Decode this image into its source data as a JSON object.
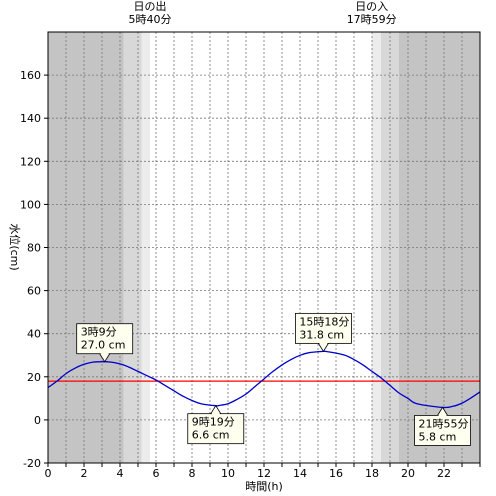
{
  "chart_data": {
    "type": "line",
    "xlabel": "時間(h)",
    "ylabel": "水位(cm)",
    "xlim": [
      0,
      24
    ],
    "ylim": [
      -20,
      180
    ],
    "x_ticks": [
      0,
      2,
      4,
      6,
      8,
      10,
      12,
      14,
      16,
      18,
      20,
      22
    ],
    "y_ticks": [
      -20,
      0,
      20,
      40,
      60,
      80,
      100,
      120,
      140,
      160
    ],
    "grid": true,
    "sunrise": {
      "label": "日の出",
      "time": "5時40分",
      "hour": 5.667
    },
    "sunset": {
      "label": "日の入",
      "time": "17時59分",
      "hour": 17.983
    },
    "night_shading": [
      {
        "from": 0,
        "to": 4.2,
        "shade": "dark"
      },
      {
        "from": 4.2,
        "to": 5.2,
        "shade": "mid"
      },
      {
        "from": 5.2,
        "to": 5.667,
        "shade": "light"
      },
      {
        "from": 17.983,
        "to": 18.5,
        "shade": "light"
      },
      {
        "from": 18.5,
        "to": 19.5,
        "shade": "mid"
      },
      {
        "from": 19.5,
        "to": 24,
        "shade": "dark"
      }
    ],
    "reference_line": {
      "value": 18,
      "color": "#ff0000"
    },
    "series": [
      {
        "color": "#0000cc",
        "x": [
          0,
          0.5,
          1,
          1.5,
          2,
          2.5,
          3.15,
          3.5,
          4,
          4.5,
          5,
          5.5,
          6,
          6.5,
          7,
          7.5,
          8,
          8.5,
          9.32,
          9.5,
          10,
          10.5,
          11,
          11.5,
          12,
          12.5,
          13,
          13.5,
          14,
          14.5,
          15.3,
          15.5,
          16,
          16.5,
          17,
          17.5,
          18,
          18.5,
          19,
          19.5,
          20,
          20.5,
          21.92,
          22.5,
          23,
          23.5,
          24
        ],
        "values": [
          15,
          18,
          21.5,
          24,
          25.8,
          26.8,
          27.0,
          26.8,
          26,
          24.5,
          22.5,
          20.5,
          18.5,
          16,
          13.5,
          11,
          9,
          7.5,
          6.6,
          6.7,
          7.5,
          9.5,
          12,
          15.5,
          19,
          22.5,
          25.5,
          28,
          30,
          31.2,
          31.8,
          31.7,
          31,
          30,
          28,
          25.5,
          22.5,
          19.5,
          16,
          12.5,
          10,
          7.5,
          5.8,
          6.3,
          7.8,
          10.2,
          13
        ]
      }
    ],
    "annotations": [
      {
        "time": "3時9分",
        "level": "27.0 cm",
        "x": 3.15,
        "y": 27.0
      },
      {
        "time": "9時19分",
        "level": "6.6 cm",
        "x": 9.32,
        "y": 6.6
      },
      {
        "time": "15時18分",
        "level": "31.8 cm",
        "x": 15.3,
        "y": 31.8
      },
      {
        "time": "21時55分",
        "level": "5.8 cm",
        "x": 21.92,
        "y": 5.8
      }
    ]
  }
}
